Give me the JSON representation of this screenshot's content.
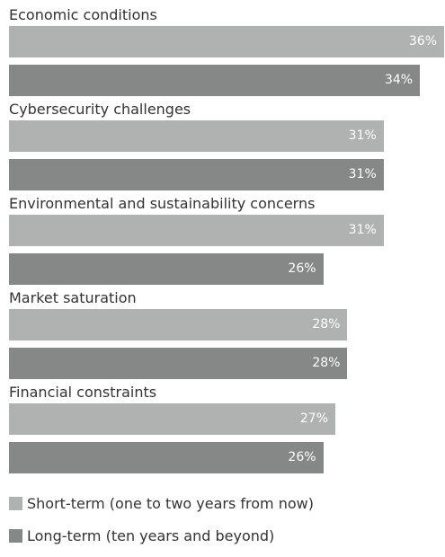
{
  "chart_data": {
    "type": "bar",
    "orientation": "horizontal",
    "categories": [
      "Economic conditions",
      "Cybersecurity challenges",
      "Environmental and sustainability concerns",
      "Market saturation",
      "Financial constraints"
    ],
    "series": [
      {
        "name": "Short-term (one to two years from now)",
        "color": "#b0b2b1",
        "values": [
          36,
          31,
          31,
          28,
          27
        ],
        "labels": [
          "36%",
          "31%",
          "31%",
          "28%",
          "27%"
        ]
      },
      {
        "name": "Long-term (ten years and beyond)",
        "color": "#868887",
        "values": [
          34,
          31,
          26,
          28,
          26
        ],
        "labels": [
          "34%",
          "31%",
          "26%",
          "28%",
          "26%"
        ]
      }
    ],
    "xlim": [
      0,
      36
    ],
    "value_unit": "%",
    "grid": false,
    "legend_position": "bottom-left"
  }
}
